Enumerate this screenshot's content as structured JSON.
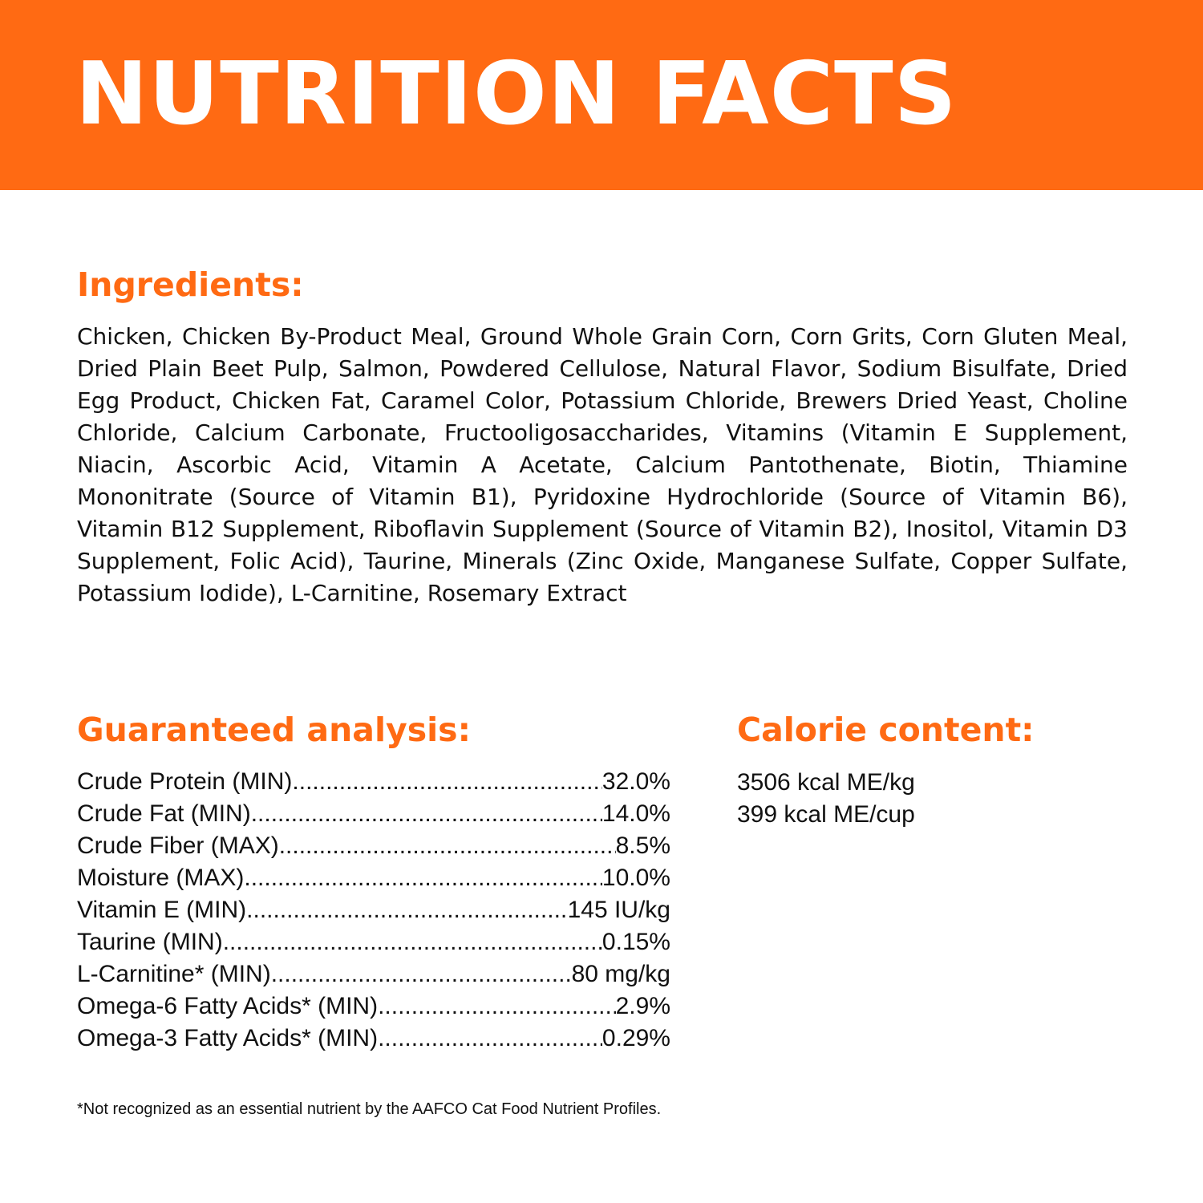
{
  "banner": {
    "title": "NUTRITION FACTS"
  },
  "colors": {
    "accent": "#ff6a13",
    "banner_text": "#ffffff",
    "body_text": "#111111"
  },
  "ingredients": {
    "heading": "Ingredients:",
    "text": "Chicken, Chicken By-Product Meal, Ground Whole Grain Corn, Corn Grits, Corn Gluten Meal, Dried Plain Beet Pulp, Salmon, Powdered Cellulose, Natural Flavor, Sodium Bisulfate, Dried Egg Product, Chicken Fat, Caramel Color, Potassium Chloride, Brewers Dried Yeast, Choline Chloride, Calcium Carbonate, Fructooligosaccharides, Vitamins (Vitamin E Supplement, Niacin, Ascorbic Acid, Vitamin A Acetate, Calcium Pantothenate, Biotin, Thiamine Mononitrate (Source of Vitamin B1), Pyridoxine Hydrochloride (Source of Vitamin B6), Vitamin B12 Supplement, Riboflavin Supplement (Source of Vitamin B2), Inositol, Vitamin D3 Supplement, Folic Acid), Taurine, Minerals (Zinc Oxide, Manganese Sulfate, Copper Sulfate, Potassium Iodide), L-Carnitine, Rosemary Extract"
  },
  "analysis": {
    "heading": "Guaranteed analysis:",
    "rows": [
      {
        "label": "Crude Protein (MIN)",
        "value": "32.0%"
      },
      {
        "label": "Crude Fat (MIN)",
        "value": "14.0%"
      },
      {
        "label": "Crude Fiber (MAX)",
        "value": "8.5%"
      },
      {
        "label": "Moisture (MAX)",
        "value": "10.0%"
      },
      {
        "label": "Vitamin E (MIN)",
        "value": "145 IU/kg"
      },
      {
        "label": "Taurine (MIN)",
        "value": "0.15%"
      },
      {
        "label": "L-Carnitine* (MIN)",
        "value": "80 mg/kg"
      },
      {
        "label": "Omega-6 Fatty Acids* (MIN)",
        "value": "2.9%"
      },
      {
        "label": "Omega-3 Fatty Acids* (MIN)",
        "value": "0.29%"
      }
    ]
  },
  "calorie": {
    "heading": "Calorie content:",
    "items": [
      "3506 kcal ME/kg",
      "399 kcal ME/cup"
    ]
  },
  "footnote": "*Not recognized as an essential nutrient by the AAFCO Cat Food Nutrient Profiles."
}
